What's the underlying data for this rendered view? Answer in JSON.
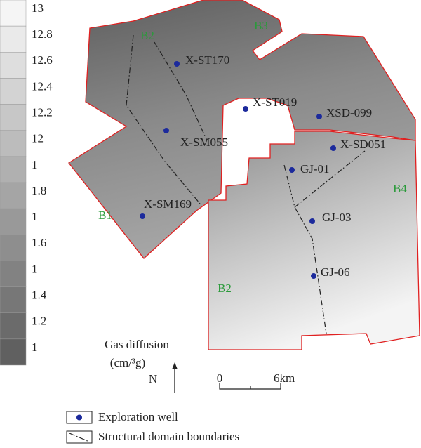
{
  "legend_scale": {
    "labels": [
      "13",
      "12.8",
      "12.6",
      "12.4",
      "12.2",
      "12",
      "1",
      "1.8",
      "1",
      "1.6",
      "1",
      "1.4",
      "1.2",
      "1"
    ]
  },
  "title": "Gas diffusion",
  "unit": "(cm/³g)",
  "north": "N",
  "scale_bar": {
    "start": "0",
    "end": "6km"
  },
  "wells": [
    {
      "label": "X-ST170"
    },
    {
      "label": "X-ST019"
    },
    {
      "label": "XSD-099"
    },
    {
      "label": "X-SM055"
    },
    {
      "label": "X-SD051"
    },
    {
      "label": "GJ-01"
    },
    {
      "label": "X-SM169"
    },
    {
      "label": "GJ-03"
    },
    {
      "label": "GJ-06"
    }
  ],
  "domains": [
    "B2",
    "B3",
    "B1",
    "B4",
    "B2"
  ],
  "legend": {
    "items": [
      "Exploration well",
      "Structural domain boundaries"
    ]
  }
}
